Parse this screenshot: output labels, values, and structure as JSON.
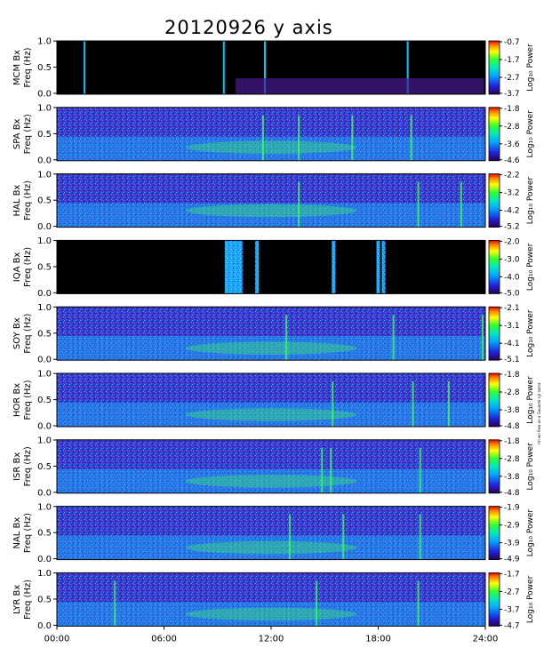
{
  "title": "20120926 y axis",
  "x_ticks": [
    "00:00",
    "06:00",
    "12:00",
    "18:00",
    "24:00"
  ],
  "colors": {
    "bg_dark": "#000000",
    "spec_low": "#3a3acf",
    "spec_mid": "#00c8ff",
    "spec_high": "#3cff5a"
  },
  "side_note": "rrn wn Row on a Gouacte cyl soma",
  "chart_data": {
    "type": "heatmap",
    "x_range": [
      "00:00",
      "24:00"
    ],
    "ylim": [
      0.0,
      1.0
    ],
    "y_ticks": [
      "0.0",
      "0.5",
      "1.0"
    ],
    "colorbar_label": "Log₁₀ Power",
    "panels": [
      {
        "station": "MCM",
        "ylabel": "MCM Bx",
        "freq_label": "Freq (Hz)",
        "cb_ticks": [
          "-0.7",
          "-1.7",
          "-2.7",
          "-3.7"
        ],
        "level": 0.05,
        "style": "dark",
        "events_hours": [
          1.5,
          9.3,
          11.6,
          19.6
        ]
      },
      {
        "station": "SPA",
        "ylabel": "SPA Bx",
        "freq_label": "Freq (Hz)",
        "cb_ticks": [
          "-1.8",
          "-2.8",
          "-3.6",
          "-4.6"
        ],
        "level": 0.5,
        "style": "spectrum",
        "events_hours": [
          11.5,
          13.5,
          16.5,
          19.8
        ]
      },
      {
        "station": "HAL",
        "ylabel": "HAL Bx",
        "freq_label": "Freq (Hz)",
        "cb_ticks": [
          "-2.2",
          "-3.2",
          "-4.2",
          "-5.2"
        ],
        "level": 0.62,
        "style": "spectrum",
        "events_hours": [
          13.5,
          20.2,
          22.6
        ]
      },
      {
        "station": "IQA",
        "ylabel": "IQA Bx",
        "freq_label": "Freq (Hz)",
        "cb_ticks": [
          "-2.0",
          "-3.0",
          "-4.0",
          "-5.0"
        ],
        "level": 0.0,
        "style": "gaps",
        "events_hours": [
          9.5,
          11.2,
          15.5,
          18.0,
          18.3
        ]
      },
      {
        "station": "SOY",
        "ylabel": "SOY Bx",
        "freq_label": "Freq (Hz)",
        "cb_ticks": [
          "-2.1",
          "-3.1",
          "-4.1",
          "-5.1"
        ],
        "level": 0.45,
        "style": "spectrum",
        "events_hours": [
          12.8,
          18.8,
          23.8
        ]
      },
      {
        "station": "HOR",
        "ylabel": "HOR Bx",
        "freq_label": "Freq (Hz)",
        "cb_ticks": [
          "-1.8",
          "-2.8",
          "-3.8",
          "-4.8"
        ],
        "level": 0.45,
        "style": "spectrum",
        "events_hours": [
          15.4,
          19.9,
          21.9
        ]
      },
      {
        "station": "ISR",
        "ylabel": "ISR Bx",
        "freq_label": "Freq (Hz)",
        "cb_ticks": [
          "-1.8",
          "-2.8",
          "-3.8",
          "-4.8"
        ],
        "level": 0.45,
        "style": "spectrum",
        "events_hours": [
          14.8,
          15.3,
          20.3
        ]
      },
      {
        "station": "NAL",
        "ylabel": "NAL Bx",
        "freq_label": "Freq (Hz)",
        "cb_ticks": [
          "-1.9",
          "-2.9",
          "-3.9",
          "-4.9"
        ],
        "level": 0.45,
        "style": "spectrum",
        "events_hours": [
          13.0,
          16.0,
          20.3
        ]
      },
      {
        "station": "LYR",
        "ylabel": "LYR Bx",
        "freq_label": "Freq (Hz)",
        "cb_ticks": [
          "-1.7",
          "-2.7",
          "-3.7",
          "-4.7"
        ],
        "level": 0.45,
        "style": "spectrum",
        "events_hours": [
          3.2,
          14.5,
          20.2
        ]
      }
    ]
  }
}
